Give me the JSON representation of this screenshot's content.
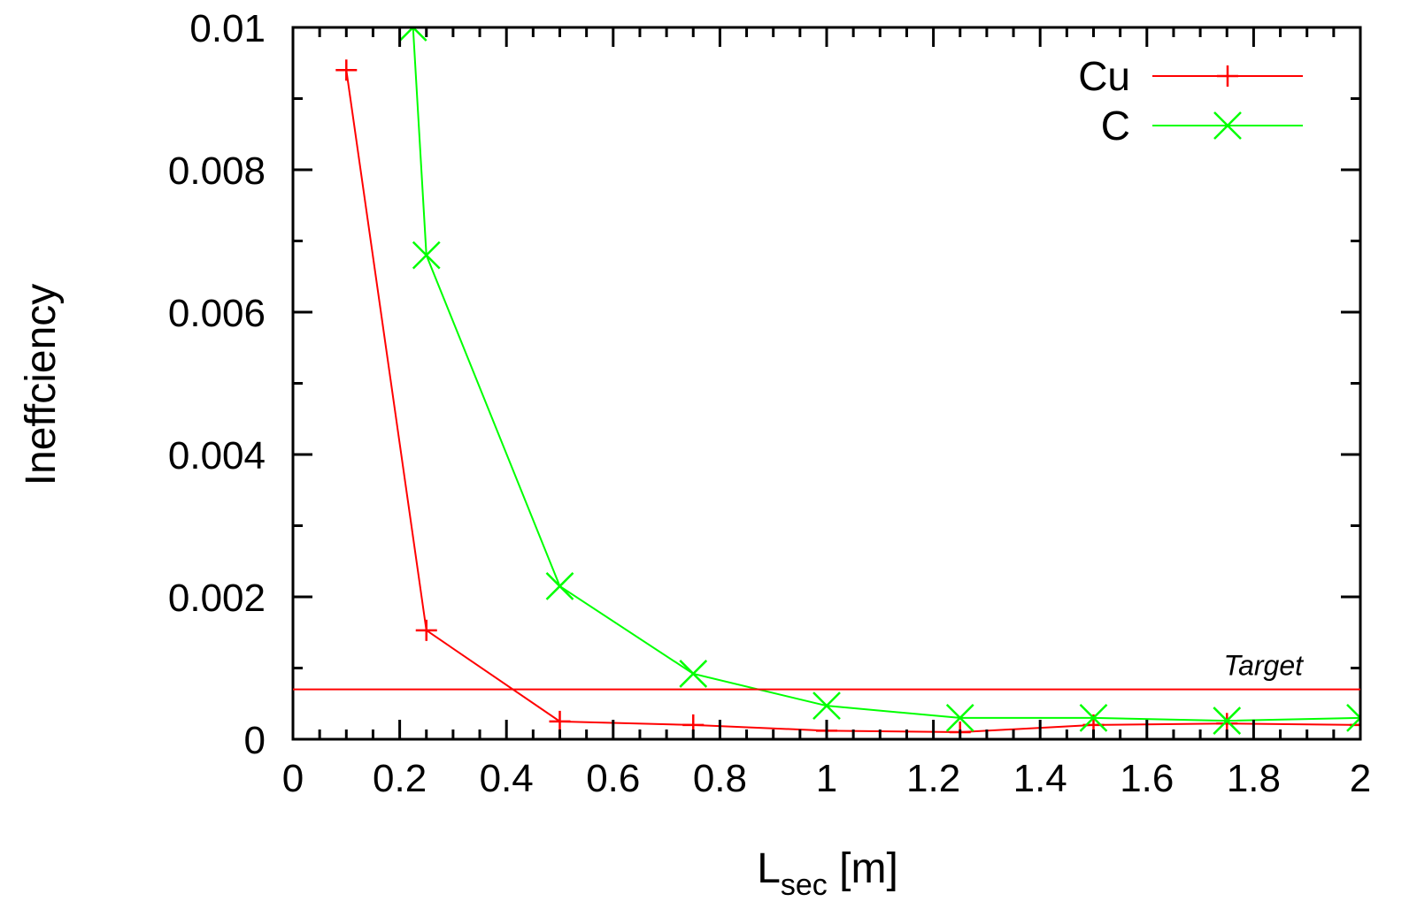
{
  "chart_data": {
    "type": "line",
    "xlabel": {
      "main": "L",
      "sub": "sec",
      "suffix": " [m]"
    },
    "ylabel": "Ineffciency",
    "xlim": [
      0,
      2
    ],
    "ylim": [
      0,
      0.01
    ],
    "x_ticks": [
      "0",
      "0.2",
      "0.4",
      "0.6",
      "0.8",
      "1",
      "1.2",
      "1.4",
      "1.6",
      "1.8",
      "2"
    ],
    "y_ticks": [
      "0",
      "0.002",
      "0.004",
      "0.006",
      "0.008",
      "0.01"
    ],
    "grid": false,
    "legend_position": "top-right",
    "series": [
      {
        "name": "Cu",
        "color": "#ff0000",
        "marker": "plus",
        "x": [
          0.1,
          0.25,
          0.5,
          0.75,
          1.0,
          1.25,
          1.5,
          1.75,
          2.0
        ],
        "y": [
          0.0094,
          0.00153,
          0.00025,
          0.0002,
          0.00012,
          0.0001,
          0.0002,
          0.00022,
          0.0002
        ]
      },
      {
        "name": "C",
        "color": "#00ff00",
        "marker": "cross",
        "x": [
          0.225,
          0.25,
          0.5,
          0.75,
          1.0,
          1.25,
          1.5,
          1.75,
          2.0
        ],
        "y": [
          0.01,
          0.0068,
          0.00215,
          0.00092,
          0.00047,
          0.0003,
          0.0003,
          0.00026,
          0.0003
        ]
      }
    ],
    "annotations": [
      {
        "text": "Target",
        "type": "hline",
        "y": 0.0007,
        "color": "#ff0000"
      }
    ]
  }
}
